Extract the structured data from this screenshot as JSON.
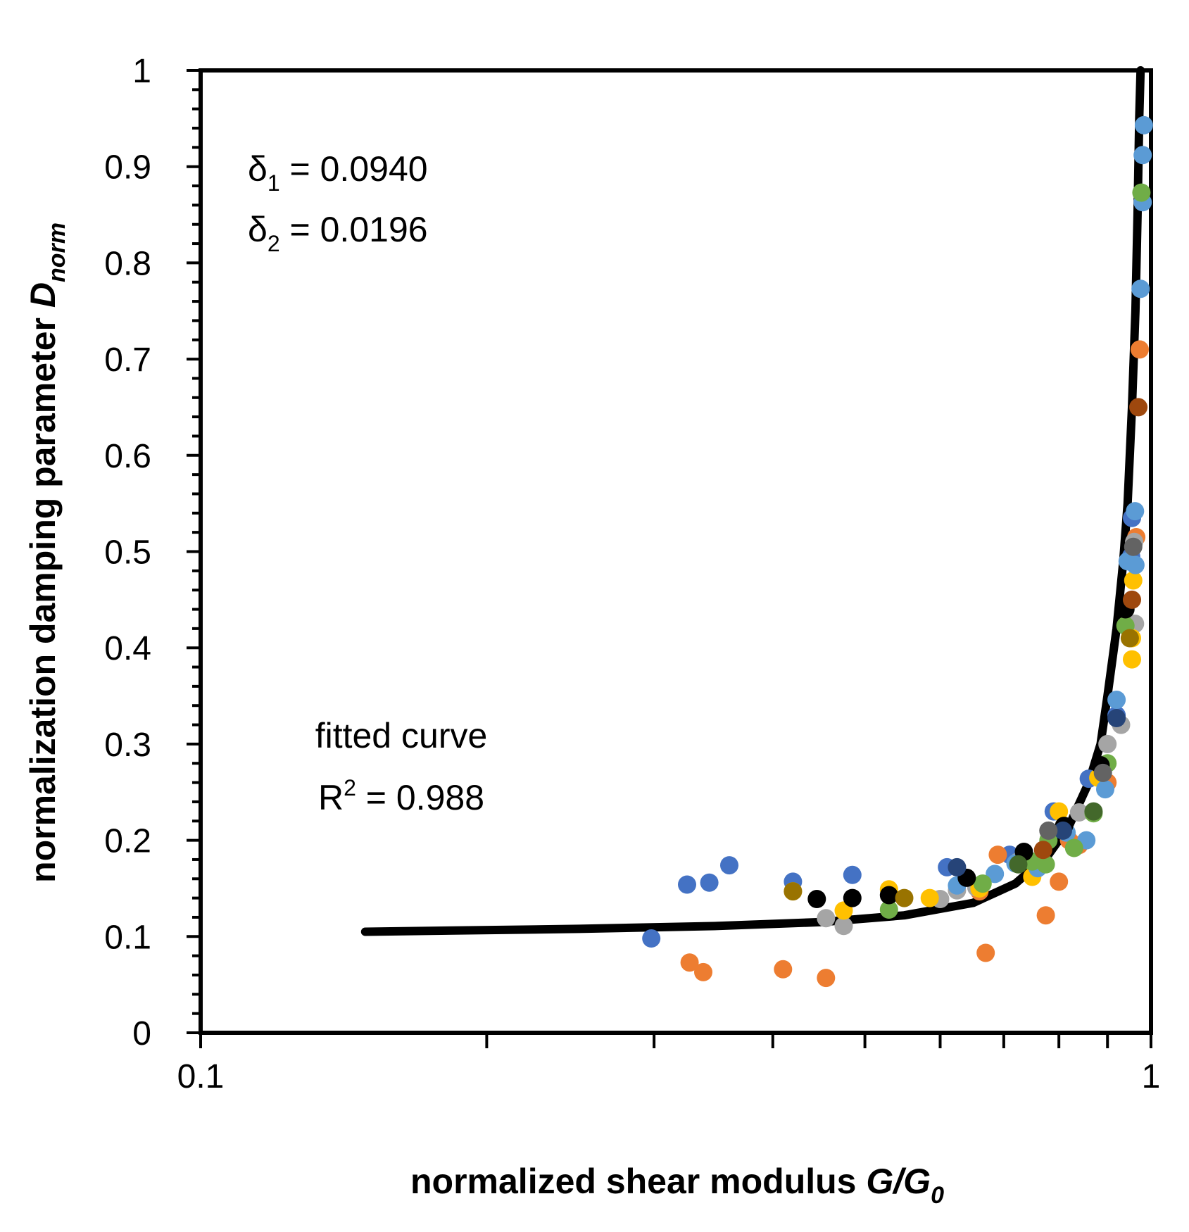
{
  "chart_data": {
    "type": "scatter",
    "xscale": "log",
    "xlim": [
      0.1,
      1
    ],
    "ylim": [
      0,
      1
    ],
    "grid": false,
    "legend": "none",
    "xlabel": {
      "text": "normalized shear modulus ",
      "italic": "G/G",
      "sub": "0"
    },
    "ylabel": {
      "text": "normalization damping parameter ",
      "italic": "D",
      "sub": "norm"
    },
    "x_tick_labels": [
      "0.1",
      "1"
    ],
    "y_tick_labels": [
      "0",
      "0.1",
      "0.2",
      "0.3",
      "0.4",
      "0.5",
      "0.6",
      "0.7",
      "0.8",
      "0.9",
      "1"
    ],
    "annotations": {
      "delta1": {
        "sym": "δ",
        "sub": "1",
        "rest": " = 0.0940"
      },
      "delta2": {
        "sym": "δ",
        "sub": "2",
        "rest": " = 0.0196"
      },
      "fit_label": "fitted curve",
      "r2": {
        "base": "R",
        "sup": "2",
        "rest": " = 0.988"
      }
    },
    "fitted_curve": {
      "color": "#000000",
      "points": [
        [
          0.149,
          0.105
        ],
        [
          0.25,
          0.108
        ],
        [
          0.35,
          0.111
        ],
        [
          0.45,
          0.115
        ],
        [
          0.55,
          0.122
        ],
        [
          0.65,
          0.135
        ],
        [
          0.72,
          0.155
        ],
        [
          0.78,
          0.185
        ],
        [
          0.82,
          0.215
        ],
        [
          0.86,
          0.26
        ],
        [
          0.885,
          0.3
        ],
        [
          0.9,
          0.35
        ],
        [
          0.92,
          0.42
        ],
        [
          0.935,
          0.49
        ],
        [
          0.945,
          0.55
        ],
        [
          0.955,
          0.65
        ],
        [
          0.963,
          0.75
        ],
        [
          0.968,
          0.85
        ],
        [
          0.972,
          0.95
        ],
        [
          0.975,
          1.0
        ]
      ]
    },
    "series": [
      {
        "color": "#4472c4",
        "points": [
          [
            0.298,
            0.098
          ],
          [
            0.325,
            0.154
          ],
          [
            0.343,
            0.156
          ],
          [
            0.36,
            0.174
          ],
          [
            0.42,
            0.157
          ],
          [
            0.485,
            0.164
          ],
          [
            0.61,
            0.172
          ],
          [
            0.71,
            0.185
          ],
          [
            0.79,
            0.23
          ],
          [
            0.86,
            0.264
          ],
          [
            0.92,
            0.33
          ],
          [
            0.955,
            0.535
          ],
          [
            0.953,
            0.495
          ]
        ]
      },
      {
        "color": "#ed7d31",
        "points": [
          [
            0.327,
            0.073
          ],
          [
            0.338,
            0.063
          ],
          [
            0.41,
            0.066
          ],
          [
            0.455,
            0.057
          ],
          [
            0.66,
            0.147
          ],
          [
            0.67,
            0.083
          ],
          [
            0.69,
            0.185
          ],
          [
            0.775,
            0.122
          ],
          [
            0.8,
            0.157
          ],
          [
            0.82,
            0.2
          ],
          [
            0.84,
            0.195
          ],
          [
            0.9,
            0.26
          ],
          [
            0.965,
            0.515
          ],
          [
            0.973,
            0.71
          ]
        ]
      },
      {
        "color": "#a5a5a5",
        "points": [
          [
            0.455,
            0.119
          ],
          [
            0.475,
            0.111
          ],
          [
            0.6,
            0.139
          ],
          [
            0.625,
            0.148
          ],
          [
            0.655,
            0.151
          ],
          [
            0.725,
            0.178
          ],
          [
            0.78,
            0.21
          ],
          [
            0.84,
            0.229
          ],
          [
            0.9,
            0.3
          ],
          [
            0.96,
            0.51
          ],
          [
            0.962,
            0.425
          ],
          [
            0.93,
            0.32
          ]
        ]
      },
      {
        "color": "#ffc000",
        "points": [
          [
            0.42,
            0.147
          ],
          [
            0.475,
            0.127
          ],
          [
            0.53,
            0.149
          ],
          [
            0.585,
            0.14
          ],
          [
            0.66,
            0.15
          ],
          [
            0.75,
            0.162
          ],
          [
            0.8,
            0.23
          ],
          [
            0.88,
            0.265
          ],
          [
            0.958,
            0.47
          ],
          [
            0.955,
            0.41
          ],
          [
            0.955,
            0.388
          ]
        ]
      },
      {
        "color": "#5b9bd5",
        "points": [
          [
            0.625,
            0.153
          ],
          [
            0.685,
            0.165
          ],
          [
            0.72,
            0.176
          ],
          [
            0.76,
            0.171
          ],
          [
            0.815,
            0.208
          ],
          [
            0.855,
            0.2
          ],
          [
            0.895,
            0.253
          ],
          [
            0.92,
            0.346
          ],
          [
            0.945,
            0.49
          ],
          [
            0.962,
            0.542
          ],
          [
            0.963,
            0.486
          ],
          [
            0.975,
            0.773
          ],
          [
            0.98,
            0.863
          ],
          [
            0.98,
            0.912
          ],
          [
            0.983,
            0.943
          ]
        ]
      },
      {
        "color": "#70ad47",
        "points": [
          [
            0.53,
            0.128
          ],
          [
            0.665,
            0.155
          ],
          [
            0.75,
            0.178
          ],
          [
            0.775,
            0.175
          ],
          [
            0.78,
            0.2
          ],
          [
            0.83,
            0.192
          ],
          [
            0.87,
            0.228
          ],
          [
            0.9,
            0.28
          ],
          [
            0.94,
            0.423
          ],
          [
            0.977,
            0.873
          ]
        ]
      },
      {
        "color": "#000000",
        "points": [
          [
            0.445,
            0.139
          ],
          [
            0.485,
            0.14
          ],
          [
            0.53,
            0.143
          ],
          [
            0.64,
            0.161
          ],
          [
            0.735,
            0.188
          ],
          [
            0.81,
            0.215
          ],
          [
            0.885,
            0.278
          ],
          [
            0.94,
            0.44
          ]
        ]
      },
      {
        "color": "#264478",
        "points": [
          [
            0.625,
            0.172
          ],
          [
            0.808,
            0.21
          ],
          [
            0.92,
            0.327
          ]
        ]
      },
      {
        "color": "#9e480e",
        "points": [
          [
            0.955,
            0.45
          ],
          [
            0.97,
            0.65
          ],
          [
            0.77,
            0.19
          ]
        ]
      },
      {
        "color": "#636363",
        "points": [
          [
            0.78,
            0.21
          ],
          [
            0.89,
            0.27
          ],
          [
            0.958,
            0.505
          ]
        ]
      },
      {
        "color": "#997300",
        "points": [
          [
            0.42,
            0.147
          ],
          [
            0.55,
            0.14
          ],
          [
            0.95,
            0.41
          ]
        ]
      },
      {
        "color": "#43682b",
        "points": [
          [
            0.725,
            0.175
          ],
          [
            0.87,
            0.23
          ]
        ]
      }
    ]
  }
}
